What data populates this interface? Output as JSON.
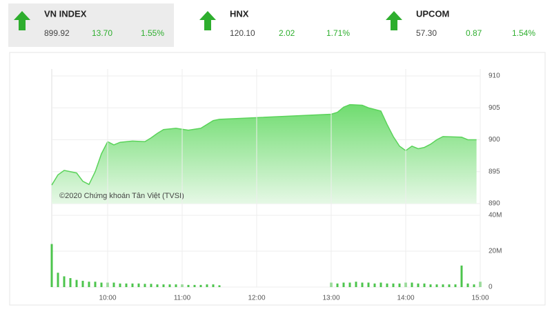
{
  "indices": [
    {
      "name": "VN INDEX",
      "value": "899.92",
      "change": "13.70",
      "pct": "1.55%"
    },
    {
      "name": "HNX",
      "value": "120.10",
      "change": "2.02",
      "pct": "1.71%"
    },
    {
      "name": "UPCOM",
      "value": "57.30",
      "change": "0.87",
      "pct": "1.54%"
    }
  ],
  "chart_data": [
    {
      "type": "area",
      "annotation": "©2020 Chứng khoán Tân Việt (TVSI)",
      "color": "#5ad35a",
      "x": [
        "09:15",
        "09:20",
        "09:25",
        "09:35",
        "09:40",
        "09:45",
        "09:50",
        "09:55",
        "10:00",
        "10:05",
        "10:10",
        "10:20",
        "10:30",
        "10:35",
        "10:40",
        "10:45",
        "10:55",
        "11:05",
        "11:15",
        "11:25",
        "11:30",
        "13:00",
        "13:05",
        "13:10",
        "13:15",
        "13:25",
        "13:30",
        "13:40",
        "13:45",
        "13:50",
        "13:55",
        "14:00",
        "14:05",
        "14:10",
        "14:15",
        "14:20",
        "14:25",
        "14:30",
        "14:45",
        "14:50",
        "14:57"
      ],
      "values": [
        892.9,
        894.5,
        895.2,
        894.8,
        893.5,
        893,
        895,
        897.8,
        899.7,
        899.2,
        899.6,
        899.8,
        899.7,
        900.3,
        901,
        901.6,
        901.8,
        901.5,
        901.8,
        903,
        903.2,
        904,
        904.3,
        905.1,
        905.5,
        905.4,
        905,
        904.5,
        902.4,
        900.5,
        899,
        898.3,
        899,
        898.6,
        898.8,
        899.3,
        900,
        900.5,
        900.4,
        900,
        900
      ],
      "xlim": [
        "09:15",
        "15:00"
      ],
      "ylim": [
        890,
        910
      ],
      "yticks": [
        890,
        895,
        900,
        905,
        910
      ],
      "grid": true
    },
    {
      "type": "bar",
      "color": "#4cc44c",
      "x": [
        "09:15",
        "09:20",
        "09:25",
        "09:30",
        "09:35",
        "09:40",
        "09:45",
        "09:50",
        "09:55",
        "10:00",
        "10:05",
        "10:10",
        "10:15",
        "10:20",
        "10:25",
        "10:30",
        "10:35",
        "10:40",
        "10:45",
        "10:50",
        "10:55",
        "11:00",
        "11:05",
        "11:10",
        "11:15",
        "11:20",
        "11:25",
        "11:30",
        "13:00",
        "13:05",
        "13:10",
        "13:15",
        "13:20",
        "13:25",
        "13:30",
        "13:35",
        "13:40",
        "13:45",
        "13:50",
        "13:55",
        "14:00",
        "14:05",
        "14:10",
        "14:15",
        "14:20",
        "14:25",
        "14:30",
        "14:35",
        "14:40",
        "14:45",
        "14:50",
        "14:55",
        "15:00"
      ],
      "values": [
        24,
        8,
        6,
        5,
        4,
        3.5,
        3,
        3,
        2.5,
        2.5,
        2.5,
        2,
        2,
        2,
        2,
        1.8,
        1.8,
        1.5,
        1.5,
        1.5,
        1.5,
        1.5,
        1.2,
        1.2,
        1.2,
        1.5,
        1.5,
        1,
        2.5,
        2,
        2.5,
        2.5,
        3,
        2.5,
        2.5,
        2,
        2.5,
        2,
        2,
        2,
        2.5,
        2.5,
        2,
        2,
        1.5,
        1.5,
        1.5,
        1.5,
        1.5,
        12,
        2,
        1.5,
        3
      ],
      "xlim": [
        "09:15",
        "15:00"
      ],
      "xticks": [
        "10:00",
        "11:00",
        "12:00",
        "13:00",
        "14:00",
        "15:00"
      ],
      "ylim": [
        0,
        40
      ],
      "yticks": [
        0,
        {
          "value": 20,
          "label": "20M"
        },
        {
          "value": 40,
          "label": "40M"
        }
      ],
      "grid": true
    }
  ]
}
